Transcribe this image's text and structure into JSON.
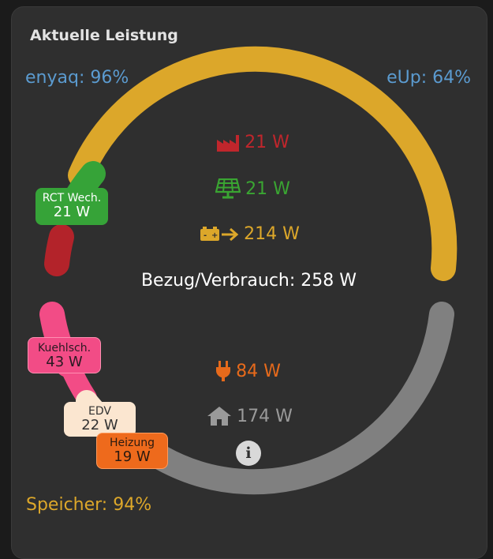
{
  "card": {
    "title": "Aktuelle Leistung"
  },
  "vehicles": {
    "enyaq": "enyaq: 96%",
    "eup": "eUp: 64%"
  },
  "storage": {
    "speicher": "Speicher: 94%"
  },
  "sources": {
    "grid": {
      "value": "21 W",
      "icon": "factory-icon",
      "color": "#c0262c"
    },
    "solar": {
      "value": "21 W",
      "icon": "solar-panel-icon",
      "color": "#3aa532"
    },
    "battery": {
      "value": "214 W",
      "icon": "battery-discharge-icon",
      "color": "#dca72a"
    }
  },
  "summary": {
    "bezug": "Bezug/Verbrauch: 258 W"
  },
  "consumers": {
    "plug": {
      "value": "84 W",
      "icon": "plug-icon",
      "color": "#e76a1b"
    },
    "house": {
      "value": "174 W",
      "icon": "house-icon",
      "color": "#9a9a9a"
    }
  },
  "tags": {
    "rct": {
      "label": "RCT Wech.",
      "value": "21 W",
      "color": "#36a338"
    },
    "kuehl": {
      "label": "Kuehlsch.",
      "value": "43 W",
      "color": "#f24c86"
    },
    "edv": {
      "label": "EDV",
      "value": "22 W",
      "color": "#fbe6d0"
    },
    "heizung": {
      "label": "Heizung",
      "value": "19 W",
      "color": "#ee6a1c"
    }
  },
  "info": {
    "icon": "info-icon",
    "glyph": "i"
  }
}
